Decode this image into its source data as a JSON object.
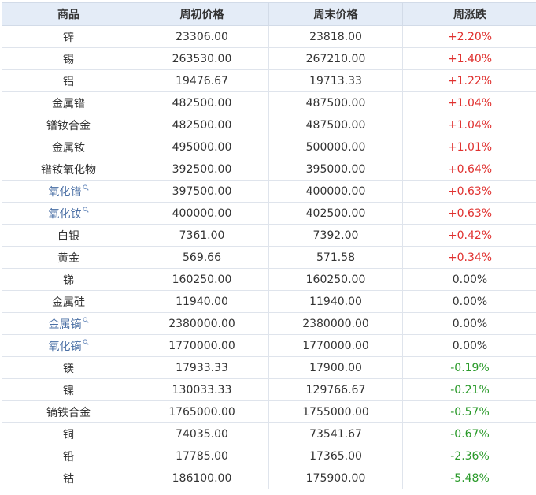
{
  "table": {
    "headers": [
      "商品",
      "周初价格",
      "周末价格",
      "周涨跌"
    ],
    "rows": [
      {
        "name": "锌",
        "open": "23306.00",
        "close": "23818.00",
        "change": "+2.20%",
        "trend": "up",
        "link": false
      },
      {
        "name": "锡",
        "open": "263530.00",
        "close": "267210.00",
        "change": "+1.40%",
        "trend": "up",
        "link": false
      },
      {
        "name": "铝",
        "open": "19476.67",
        "close": "19713.33",
        "change": "+1.22%",
        "trend": "up",
        "link": false
      },
      {
        "name": "金属镨",
        "open": "482500.00",
        "close": "487500.00",
        "change": "+1.04%",
        "trend": "up",
        "link": false
      },
      {
        "name": "镨钕合金",
        "open": "482500.00",
        "close": "487500.00",
        "change": "+1.04%",
        "trend": "up",
        "link": false
      },
      {
        "name": "金属钕",
        "open": "495000.00",
        "close": "500000.00",
        "change": "+1.01%",
        "trend": "up",
        "link": false
      },
      {
        "name": "镨钕氧化物",
        "open": "392500.00",
        "close": "395000.00",
        "change": "+0.64%",
        "trend": "up",
        "link": false
      },
      {
        "name": "氧化镨",
        "open": "397500.00",
        "close": "400000.00",
        "change": "+0.63%",
        "trend": "up",
        "link": true
      },
      {
        "name": "氧化钕",
        "open": "400000.00",
        "close": "402500.00",
        "change": "+0.63%",
        "trend": "up",
        "link": true
      },
      {
        "name": "白银",
        "open": "7361.00",
        "close": "7392.00",
        "change": "+0.42%",
        "trend": "up",
        "link": false
      },
      {
        "name": "黄金",
        "open": "569.66",
        "close": "571.58",
        "change": "+0.34%",
        "trend": "up",
        "link": false
      },
      {
        "name": "锑",
        "open": "160250.00",
        "close": "160250.00",
        "change": "0.00%",
        "trend": "flat",
        "link": false
      },
      {
        "name": "金属硅",
        "open": "11940.00",
        "close": "11940.00",
        "change": "0.00%",
        "trend": "flat",
        "link": false
      },
      {
        "name": "金属镝",
        "open": "2380000.00",
        "close": "2380000.00",
        "change": "0.00%",
        "trend": "flat",
        "link": true
      },
      {
        "name": "氧化镝",
        "open": "1770000.00",
        "close": "1770000.00",
        "change": "0.00%",
        "trend": "flat",
        "link": true
      },
      {
        "name": "镁",
        "open": "17933.33",
        "close": "17900.00",
        "change": "-0.19%",
        "trend": "down",
        "link": false
      },
      {
        "name": "镍",
        "open": "130033.33",
        "close": "129766.67",
        "change": "-0.21%",
        "trend": "down",
        "link": false
      },
      {
        "name": "镝铁合金",
        "open": "1765000.00",
        "close": "1755000.00",
        "change": "-0.57%",
        "trend": "down",
        "link": false
      },
      {
        "name": "铜",
        "open": "74035.00",
        "close": "73541.67",
        "change": "-0.67%",
        "trend": "down",
        "link": false
      },
      {
        "name": "铅",
        "open": "17785.00",
        "close": "17365.00",
        "change": "-2.36%",
        "trend": "down",
        "link": false
      },
      {
        "name": "钴",
        "open": "186100.00",
        "close": "175900.00",
        "change": "-5.48%",
        "trend": "down",
        "link": false
      }
    ]
  },
  "colors": {
    "header_bg": "#e4ecf7",
    "up": "#e0312f",
    "down": "#2a9a2a",
    "link": "#4a6fa5"
  },
  "icons": {
    "link_suffix": "search-icon"
  }
}
